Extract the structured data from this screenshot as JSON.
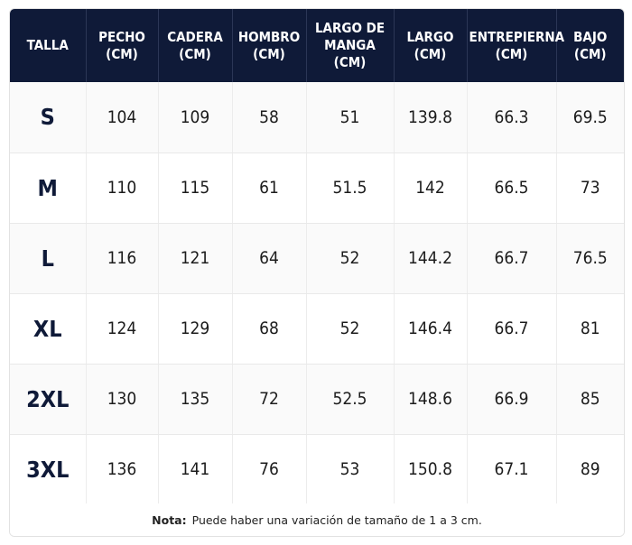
{
  "headers": [
    [
      "TALLA"
    ],
    [
      "PECHO",
      "(CM)"
    ],
    [
      "CADERA",
      "(CM)"
    ],
    [
      "HOMBRO",
      "(CM)"
    ],
    [
      "LARGO DE",
      "MANGA (CM)"
    ],
    [
      "LARGO",
      "(CM)"
    ],
    [
      "ENTREPIERNA",
      "(CM)"
    ],
    [
      "BAJO",
      "(CM)"
    ]
  ],
  "rows": [
    [
      "S",
      "104",
      "109",
      "58",
      "51",
      "139.8",
      "66.3",
      "69.5"
    ],
    [
      "M",
      "110",
      "115",
      "61",
      "51.5",
      "142",
      "66.5",
      "73"
    ],
    [
      "L",
      "116",
      "121",
      "64",
      "52",
      "144.2",
      "66.7",
      "76.5"
    ],
    [
      "XL",
      "124",
      "129",
      "68",
      "52",
      "146.4",
      "66.7",
      "81"
    ],
    [
      "2XL",
      "130",
      "135",
      "72",
      "52.5",
      "148.6",
      "66.9",
      "85"
    ],
    [
      "3XL",
      "136",
      "141",
      "76",
      "53",
      "150.8",
      "67.1",
      "89"
    ]
  ],
  "note": {
    "label": "Nota:",
    "text": "Puede haber una variación de tamaño de 1 a 3 cm."
  },
  "colors": {
    "header_bg": "#0f1a38",
    "header_text": "#ffffff",
    "size_text": "#0f1a38"
  }
}
